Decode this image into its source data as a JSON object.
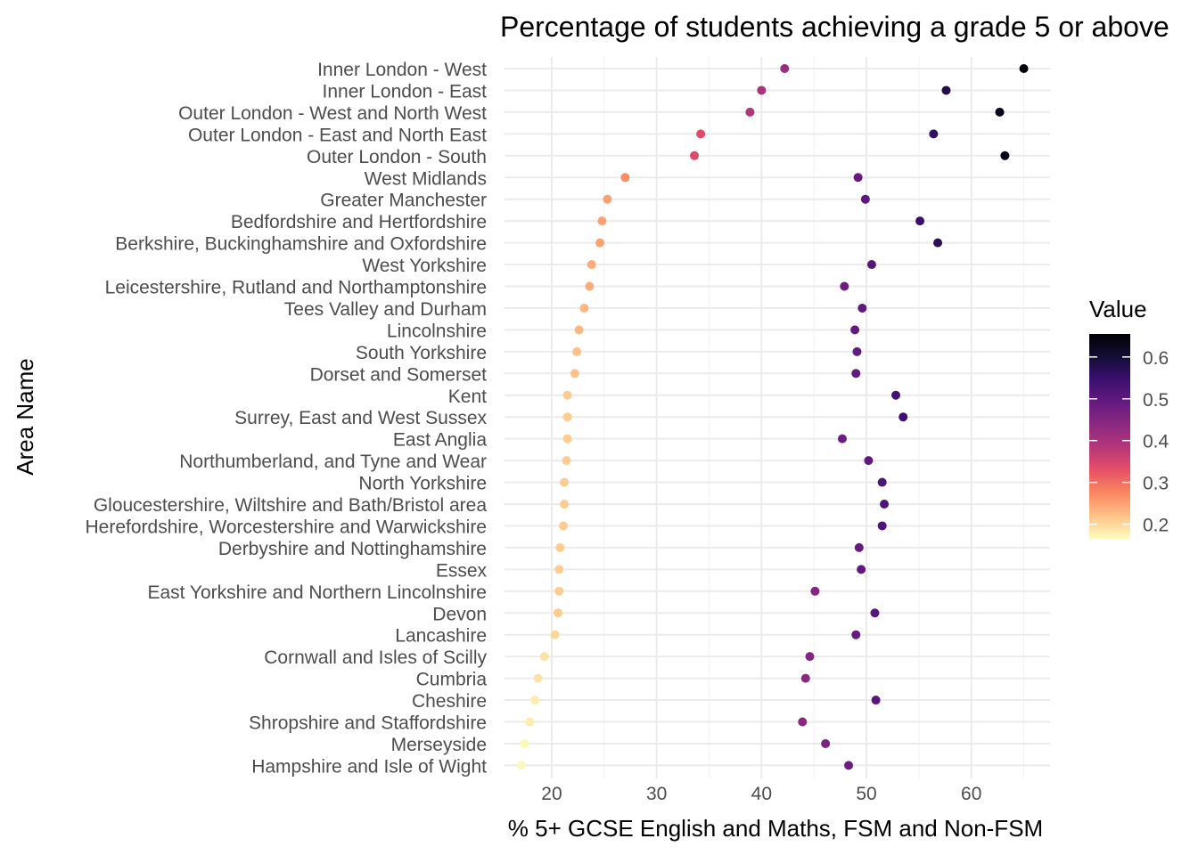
{
  "chart_data": {
    "type": "scatter",
    "title": "Percentage of students achieving a grade 5 or above",
    "xlabel": "% 5+ GCSE English and Maths, FSM and Non-FSM",
    "ylabel": "Area Name",
    "xlim": [
      15.5,
      67.5
    ],
    "xticks": [
      20,
      30,
      40,
      50,
      60
    ],
    "grid": true,
    "categories": [
      "Inner London - West",
      "Inner London - East",
      "Outer London - West and North West",
      "Outer London - East and North East",
      "Outer London - South",
      "West Midlands",
      "Greater Manchester",
      "Bedfordshire and Hertfordshire",
      "Berkshire, Buckinghamshire and Oxfordshire",
      "West Yorkshire",
      "Leicestershire, Rutland and Northamptonshire",
      "Tees Valley and Durham",
      "Lincolnshire",
      "South Yorkshire",
      "Dorset and Somerset",
      "Kent",
      "Surrey, East and West Sussex",
      "East Anglia",
      "Northumberland, and Tyne and Wear",
      "North Yorkshire",
      "Gloucestershire, Wiltshire and Bath/Bristol area",
      "Herefordshire, Worcestershire and Warwickshire",
      "Derbyshire and Nottinghamshire",
      "Essex",
      "East Yorkshire and Northern Lincolnshire",
      "Devon",
      "Lancashire",
      "Cornwall and Isles of Scilly",
      "Cumbria",
      "Cheshire",
      "Shropshire and Staffordshire",
      "Merseyside",
      "Hampshire and Isle of Wight"
    ],
    "series": [
      {
        "values": [
          42.2,
          40.0,
          38.9,
          34.2,
          33.6,
          27.0,
          25.3,
          24.8,
          24.6,
          23.8,
          23.6,
          23.1,
          22.6,
          22.4,
          22.2,
          21.5,
          21.5,
          21.5,
          21.4,
          21.2,
          21.2,
          21.1,
          20.8,
          20.7,
          20.7,
          20.6,
          20.3,
          19.3,
          18.7,
          18.4,
          17.9,
          17.4,
          17.1
        ],
        "colors": [
          0.42,
          0.4,
          0.39,
          0.34,
          0.34,
          0.27,
          0.25,
          0.25,
          0.25,
          0.24,
          0.24,
          0.23,
          0.23,
          0.22,
          0.22,
          0.21,
          0.21,
          0.21,
          0.21,
          0.21,
          0.21,
          0.21,
          0.21,
          0.21,
          0.21,
          0.21,
          0.2,
          0.19,
          0.19,
          0.18,
          0.18,
          0.17,
          0.17
        ]
      },
      {
        "values": [
          65.0,
          57.6,
          62.7,
          56.4,
          63.2,
          49.2,
          49.9,
          55.1,
          56.8,
          50.5,
          47.9,
          49.6,
          48.9,
          49.1,
          49.0,
          52.8,
          53.5,
          47.7,
          50.2,
          51.5,
          51.7,
          51.5,
          49.3,
          49.5,
          45.1,
          50.8,
          49.0,
          44.6,
          44.2,
          50.9,
          43.9,
          46.1,
          48.3
        ],
        "colors": [
          0.65,
          0.58,
          0.63,
          0.56,
          0.63,
          0.49,
          0.5,
          0.55,
          0.57,
          0.51,
          0.48,
          0.5,
          0.49,
          0.49,
          0.49,
          0.53,
          0.54,
          0.48,
          0.5,
          0.52,
          0.52,
          0.52,
          0.49,
          0.5,
          0.45,
          0.51,
          0.49,
          0.45,
          0.44,
          0.51,
          0.44,
          0.46,
          0.48
        ]
      }
    ],
    "legend": {
      "title": "Value",
      "placement": "right",
      "range": [
        0.165,
        0.655
      ],
      "ticks": [
        "0.2",
        "0.3",
        "0.4",
        "0.5",
        "0.6"
      ],
      "tick_values": [
        0.2,
        0.3,
        0.4,
        0.5,
        0.6
      ]
    },
    "colormap": [
      "#FCFDBF",
      "#FEC287",
      "#FB8861",
      "#E65164",
      "#B73779",
      "#8C2981",
      "#641A80",
      "#3B0F70",
      "#140E36",
      "#000004"
    ]
  }
}
